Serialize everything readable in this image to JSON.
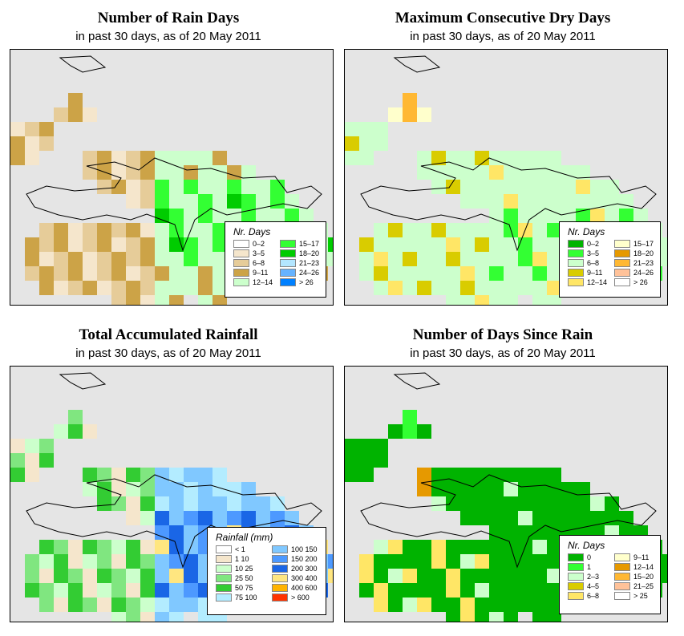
{
  "panels": [
    {
      "title": "Number of Rain Days",
      "subtitle": "in past 30 days, as of  20 May 2011",
      "legend": {
        "title": "Nr. Days",
        "items": [
          {
            "label": "0–2",
            "color": "#ffffff"
          },
          {
            "label": "3–5",
            "color": "#f5e6cc"
          },
          {
            "label": "6–8",
            "color": "#e6cc99"
          },
          {
            "label": "9–11",
            "color": "#cca347"
          },
          {
            "label": "12–14",
            "color": "#ccffcc"
          },
          {
            "label": "15–17",
            "color": "#33ff33"
          },
          {
            "label": "18–20",
            "color": "#00cc00"
          },
          {
            "label": "21–23",
            "color": "#b3e6ff"
          },
          {
            "label": "24–26",
            "color": "#66b3ff"
          },
          {
            "label": "> 26",
            "color": "#0080ff"
          }
        ]
      }
    },
    {
      "title": "Maximum Consecutive Dry Days",
      "subtitle": "in past 30 days, as of  20 May 2011",
      "legend": {
        "title": "Nr. Days",
        "items": [
          {
            "label": "0–2",
            "color": "#00b300"
          },
          {
            "label": "3–5",
            "color": "#33ff33"
          },
          {
            "label": "6–8",
            "color": "#ccffcc"
          },
          {
            "label": "9–11",
            "color": "#d9cc00"
          },
          {
            "label": "12–14",
            "color": "#ffe666"
          },
          {
            "label": "15–17",
            "color": "#ffffcc"
          },
          {
            "label": "18–20",
            "color": "#e69900"
          },
          {
            "label": "21–23",
            "color": "#ffb833"
          },
          {
            "label": "24–26",
            "color": "#ffc299"
          },
          {
            "label": "> 26",
            "color": "#ffffff"
          }
        ]
      }
    },
    {
      "title": "Total Accumulated Rainfall",
      "subtitle": "in past 30 days, as of  20 May 2011",
      "legend": {
        "title": "Rainfall (mm)",
        "items": [
          {
            "label": "< 1",
            "color": "#ffffff"
          },
          {
            "label": "1    10",
            "color": "#f5e6cc"
          },
          {
            "label": "10    25",
            "color": "#ccffcc"
          },
          {
            "label": "25    50",
            "color": "#80e680"
          },
          {
            "label": "50    75",
            "color": "#33cc33"
          },
          {
            "label": "75  100",
            "color": "#b3ecff"
          },
          {
            "label": "100  150",
            "color": "#80c8ff"
          },
          {
            "label": "150  200",
            "color": "#4d99ff"
          },
          {
            "label": "200  300",
            "color": "#1a66e6"
          },
          {
            "label": "300  400",
            "color": "#ffe680"
          },
          {
            "label": "400  600",
            "color": "#ffb300"
          },
          {
            "label": "> 600",
            "color": "#ff3300"
          }
        ]
      }
    },
    {
      "title": "Number of Days Since Rain",
      "subtitle": "in past 30 days, as of  20 May 2011",
      "legend": {
        "title": "Nr. Days",
        "items": [
          {
            "label": "0",
            "color": "#00b300"
          },
          {
            "label": "1",
            "color": "#33ff33"
          },
          {
            "label": "2–3",
            "color": "#ccffcc"
          },
          {
            "label": "4–5",
            "color": "#d9cc00"
          },
          {
            "label": "6–8",
            "color": "#ffe666"
          },
          {
            "label": "9–11",
            "color": "#ffffcc"
          },
          {
            "label": "12–14",
            "color": "#e69900"
          },
          {
            "label": "15–20",
            "color": "#ffb833"
          },
          {
            "label": "21–25",
            "color": "#ffc299"
          },
          {
            "label": "> 25",
            "color": "#ffffff"
          }
        ]
      }
    }
  ]
}
